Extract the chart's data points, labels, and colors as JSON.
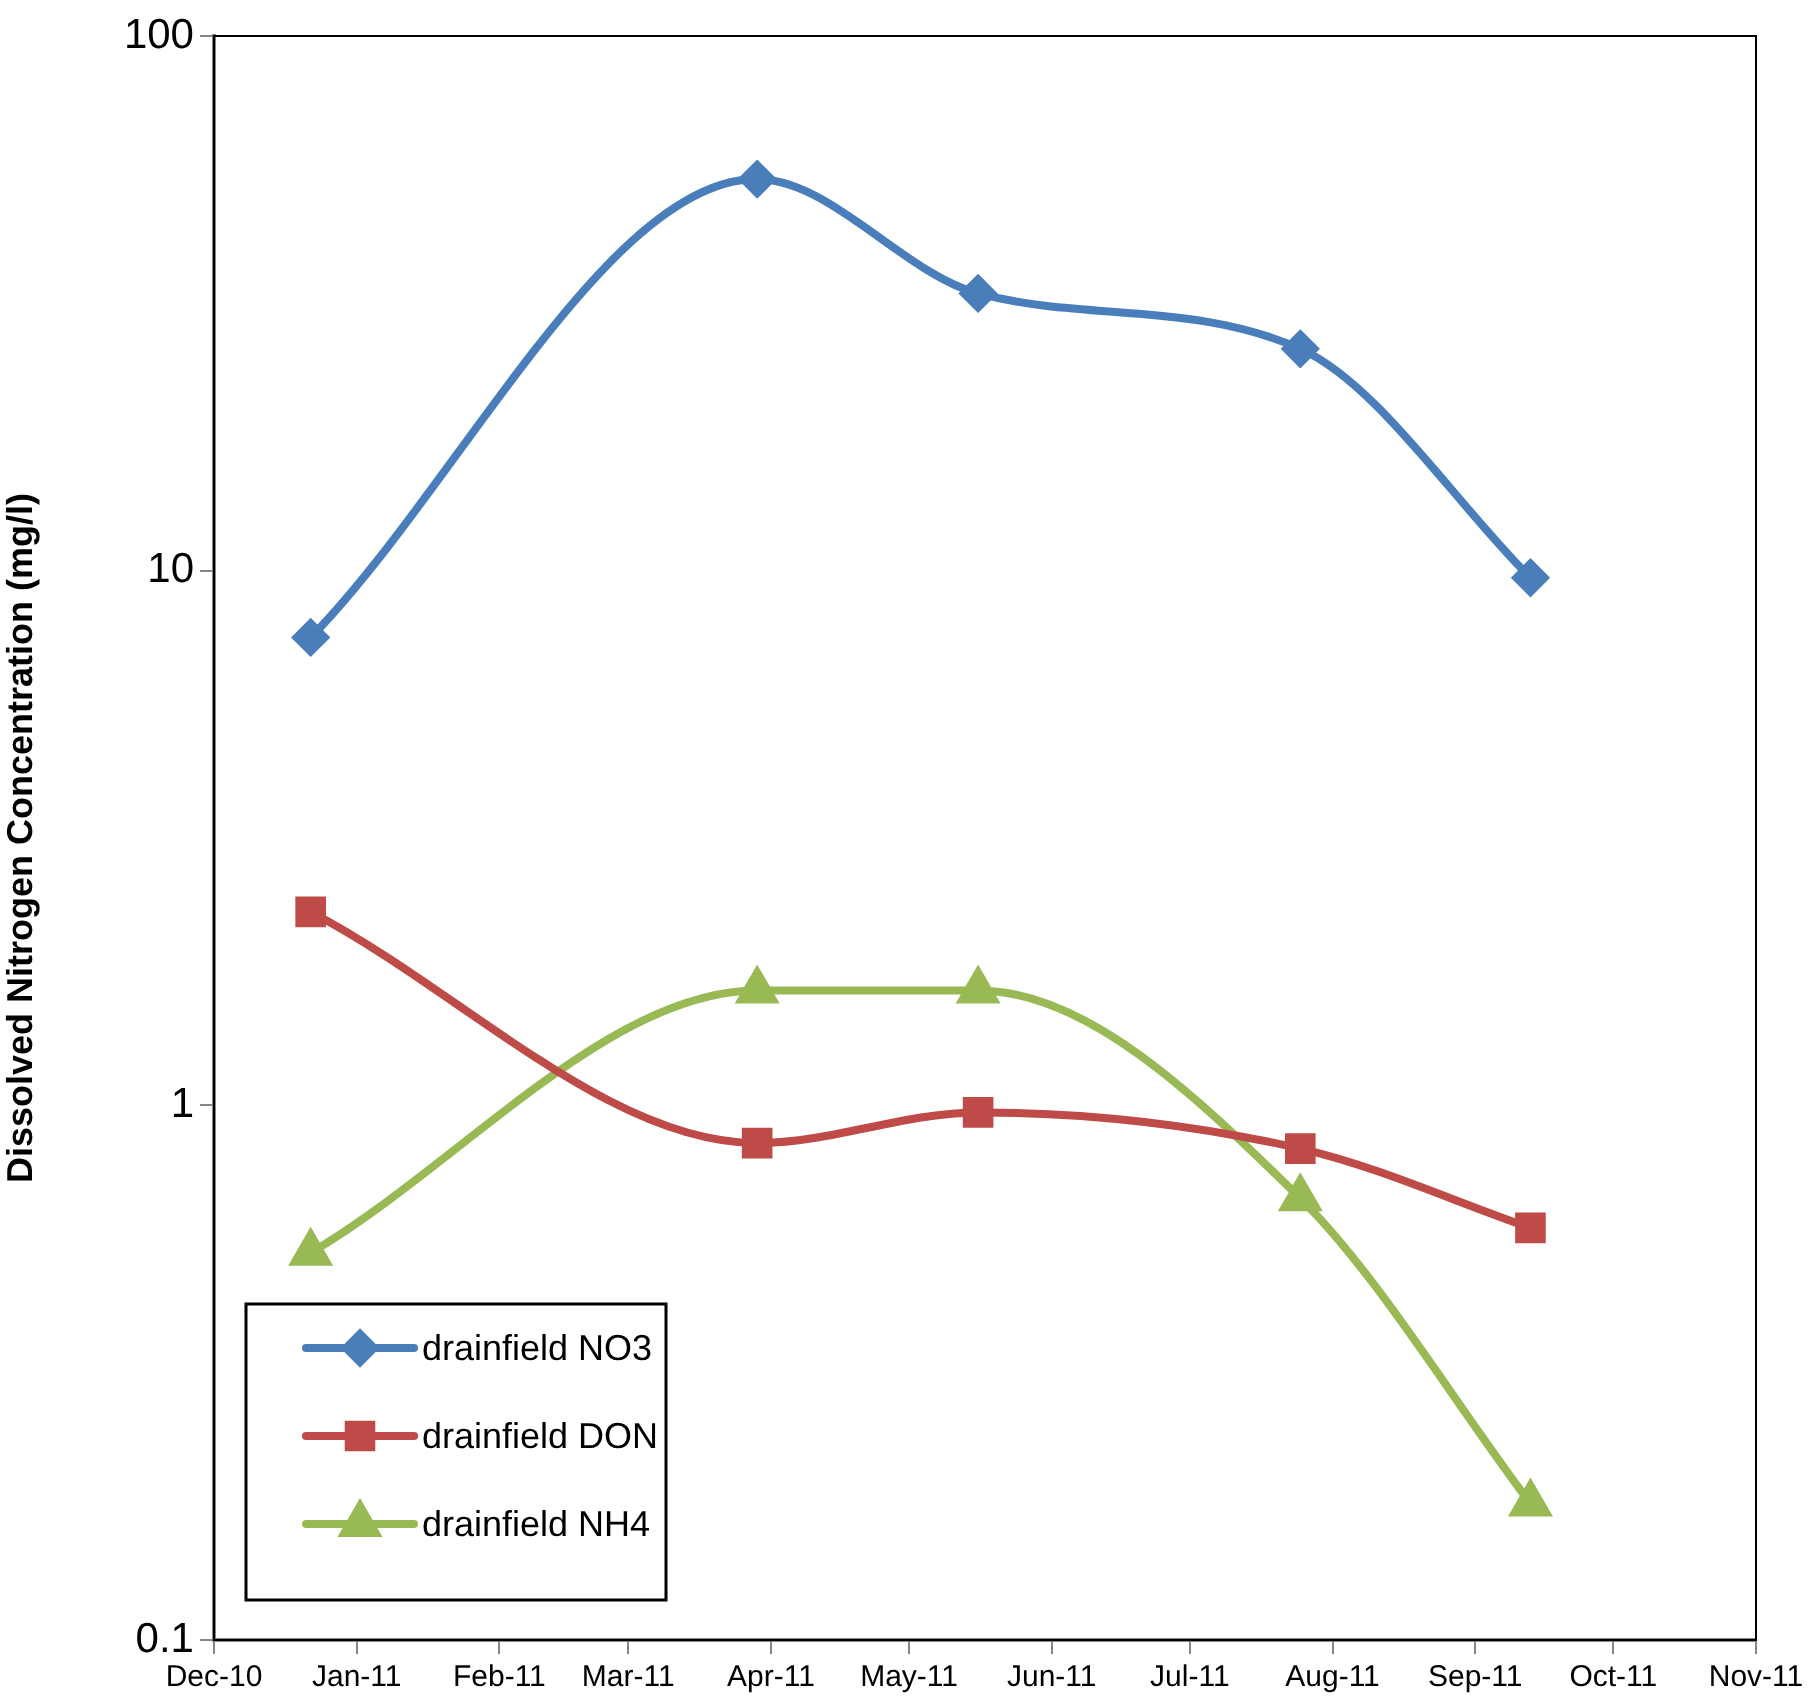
{
  "chart_data": {
    "type": "line",
    "ylabel": "Dissolved Nitrogen Concentration (mg/l)",
    "x": [
      "2010-12-22",
      "2011-03-29",
      "2011-05-16",
      "2011-07-25",
      "2011-09-13"
    ],
    "series": [
      {
        "name": "drainfield NO3",
        "color": "#4a7ebb",
        "marker": "diamond",
        "values": [
          7.5,
          54,
          33,
          26,
          9.7
        ]
      },
      {
        "name": "drainfield DON",
        "color": "#be4b48",
        "marker": "square",
        "values": [
          2.3,
          0.85,
          0.97,
          0.83,
          0.59
        ]
      },
      {
        "name": "drainfield NH4",
        "color": "#98b954",
        "marker": "triangle",
        "values": [
          0.53,
          1.64,
          1.64,
          0.67,
          0.18
        ]
      }
    ],
    "log": "y",
    "ylim": [
      0.1,
      100
    ],
    "yticks": [
      0.1,
      1,
      10,
      100
    ],
    "xlim": [
      "2010-12",
      "2011-11"
    ],
    "xticks": [
      {
        "value": "2010-12",
        "label": "Dec-10"
      },
      {
        "value": "2011-01",
        "label": "Jan-11"
      },
      {
        "value": "2011-02",
        "label": "Feb-11"
      },
      {
        "value": "2011-03",
        "label": "Mar-11"
      },
      {
        "value": "2011-04",
        "label": "Apr-11"
      },
      {
        "value": "2011-05",
        "label": "May-11"
      },
      {
        "value": "2011-06",
        "label": "Jun-11"
      },
      {
        "value": "2011-07",
        "label": "Jul-11"
      },
      {
        "value": "2011-08",
        "label": "Aug-11"
      },
      {
        "value": "2011-09",
        "label": "Sep-11"
      },
      {
        "value": "2011-10",
        "label": "Oct-11"
      },
      {
        "value": "2011-11",
        "label": "Nov-11"
      }
    ],
    "grid": false,
    "legend": "bottom left",
    "line_style": "solid"
  }
}
